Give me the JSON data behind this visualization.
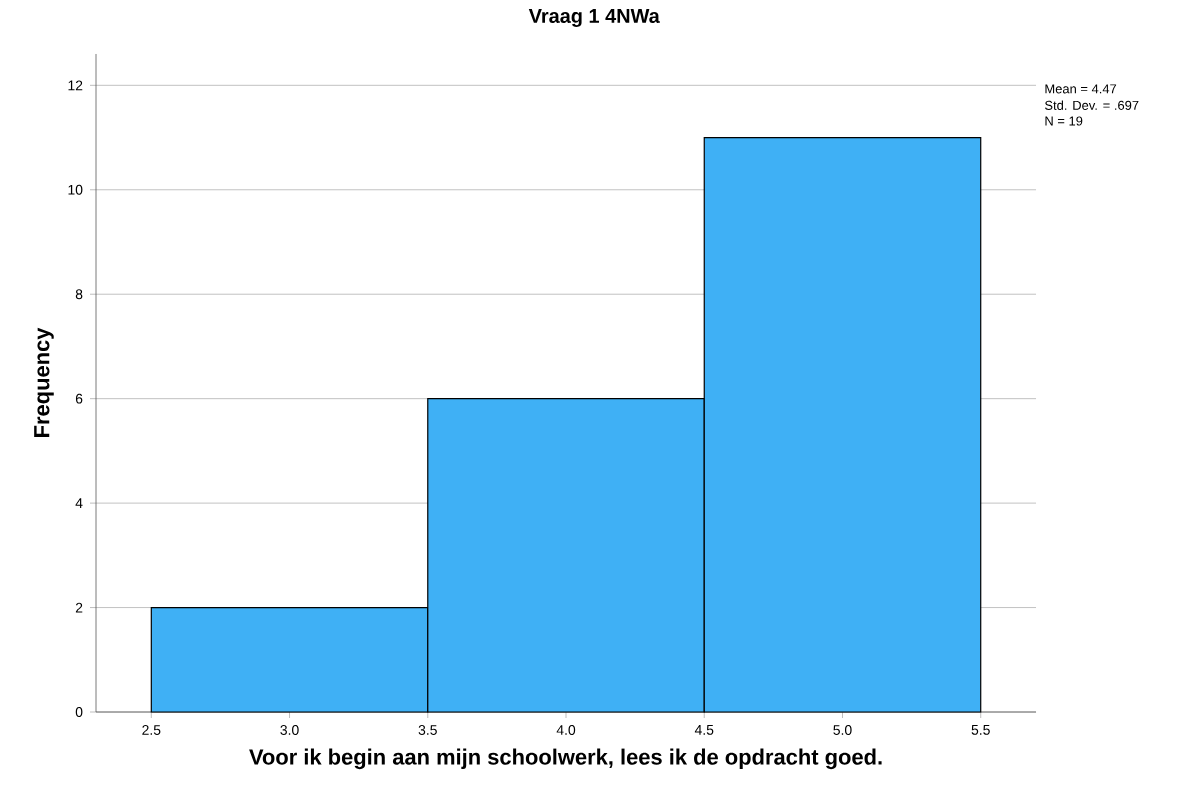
{
  "chart_data": {
    "type": "histogram",
    "title": "Vraag 1 4NWa",
    "xlabel": "Voor ik begin aan mijn schoolwerk, lees ik de opdracht goed.",
    "ylabel": "Frequency",
    "bins": [
      2.5,
      3.5,
      4.5,
      5.5
    ],
    "values": [
      2,
      6,
      11
    ],
    "color": "#3fb0f5",
    "xlim": [
      2.3,
      5.7
    ],
    "xticks": [
      2.5,
      {
        "value": 3.0,
        "label": "3.0"
      },
      3.5,
      {
        "value": 4.0,
        "label": "4.0"
      },
      4.5,
      {
        "value": 5.0,
        "label": "5.0"
      },
      5.5
    ],
    "ylim": [
      0,
      12.6
    ],
    "yticks": [
      0,
      2,
      4,
      6,
      8,
      10,
      12
    ],
    "grid": "y",
    "annotations": [
      "Mean = 4.47",
      "Std. Dev. = .697",
      "N = 19"
    ]
  }
}
